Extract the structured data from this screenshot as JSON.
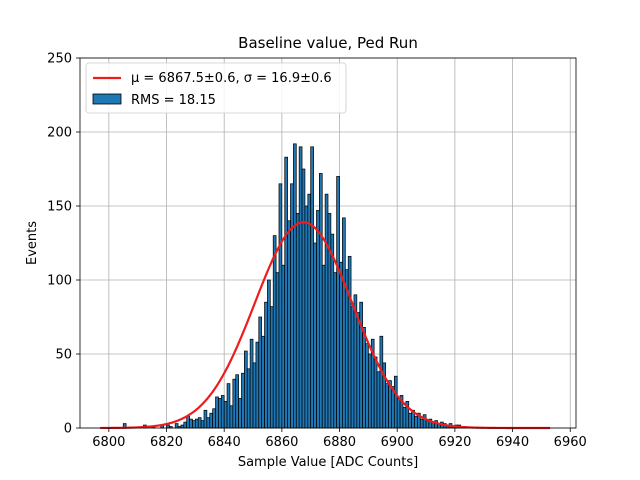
{
  "chart_data": {
    "type": "bar",
    "title": "Baseline value, Ped Run",
    "xlabel": "Sample Value [ADC Counts]",
    "ylabel": "Events",
    "xlim": [
      6790,
      6962
    ],
    "ylim": [
      0,
      250
    ],
    "xticks": [
      6800,
      6820,
      6840,
      6860,
      6880,
      6900,
      6920,
      6940,
      6960
    ],
    "yticks": [
      0,
      50,
      100,
      150,
      200,
      250
    ],
    "grid": true,
    "legend_position": "top-left",
    "legend": {
      "fit_label_mu": "μ = 6867.5±0.6, ",
      "fit_label_sigma": "σ = 16.9±0.6",
      "hist_label": "RMS = 18.15"
    },
    "bar_color": "#1f77b4",
    "fit_color": "#ee1c1c",
    "bin_width": 1,
    "bins_start": 6797,
    "values": [
      0,
      0,
      0,
      0,
      0,
      0,
      0,
      0,
      3,
      0,
      0,
      0,
      0,
      0,
      0,
      2,
      0,
      0,
      1,
      0,
      0,
      2,
      0,
      2,
      1,
      0,
      3,
      1,
      2,
      4,
      8,
      6,
      5,
      6,
      7,
      5,
      12,
      7,
      10,
      13,
      21,
      20,
      22,
      18,
      30,
      15,
      33,
      36,
      20,
      37,
      52,
      40,
      60,
      44,
      58,
      75,
      62,
      85,
      100,
      82,
      130,
      105,
      165,
      110,
      183,
      140,
      165,
      192,
      145,
      190,
      175,
      150,
      158,
      190,
      125,
      147,
      172,
      110,
      158,
      145,
      131,
      105,
      170,
      112,
      142,
      107,
      116,
      82,
      90,
      78,
      85,
      68,
      57,
      50,
      60,
      48,
      38,
      62,
      44,
      30,
      32,
      28,
      35,
      20,
      22,
      14,
      18,
      10,
      12,
      8,
      10,
      6,
      9,
      5,
      6,
      4,
      5,
      3,
      4,
      3,
      2,
      3,
      1,
      2,
      2,
      1,
      1,
      0,
      0,
      0,
      0,
      0,
      0,
      0,
      0,
      0,
      0,
      0,
      0,
      0,
      0,
      0,
      0,
      0,
      0,
      0,
      0,
      0
    ],
    "fit": {
      "mu": 6867.5,
      "sigma": 16.9,
      "amplitude": 139,
      "x_range": [
        6797,
        6953
      ]
    }
  }
}
